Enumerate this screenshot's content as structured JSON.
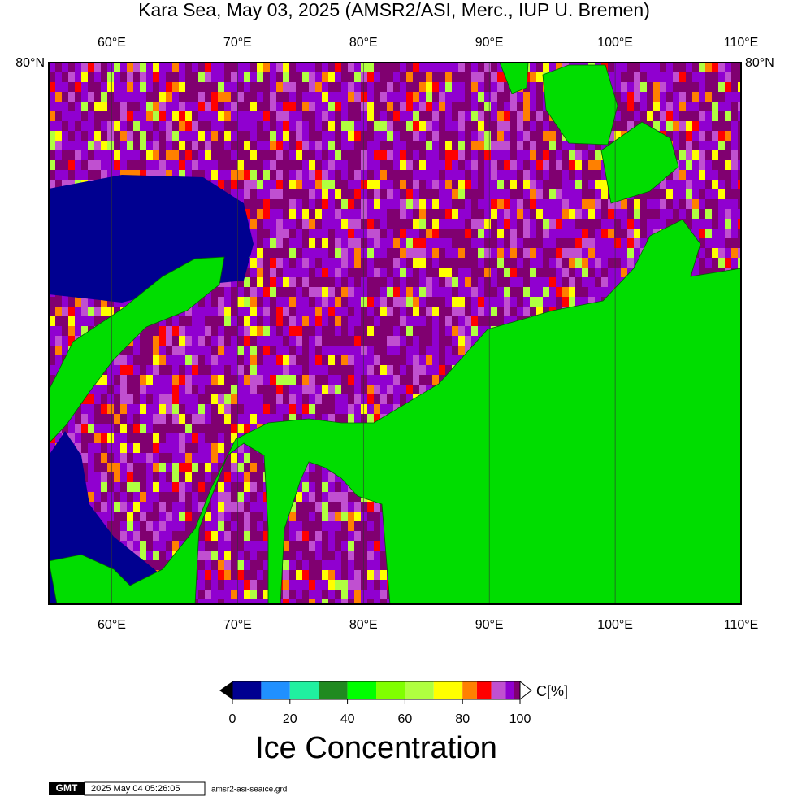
{
  "title": "Kara Sea, May 03, 2025 (AMSR2/ASI, Merc., IUP U. Bremen)",
  "map": {
    "lonlim": [
      55,
      110
    ],
    "lon_ticks": [
      {
        "value": 60,
        "label": "60°E"
      },
      {
        "value": 70,
        "label": "70°E"
      },
      {
        "value": 80,
        "label": "80°E"
      },
      {
        "value": 90,
        "label": "90°E"
      },
      {
        "value": 100,
        "label": "100°E"
      },
      {
        "value": 110,
        "label": "110°E"
      }
    ],
    "lat_label": "80°N"
  },
  "colorbar": {
    "bins": [
      0,
      10,
      20,
      30,
      40,
      50,
      60,
      70,
      80,
      85,
      90,
      95,
      98,
      100
    ],
    "colors": [
      "#000090",
      "#2090ff",
      "#20f0a0",
      "#208a20",
      "#00ff00",
      "#80ff00",
      "#b0ff40",
      "#ffff00",
      "#ff8000",
      "#ff0000",
      "#c050d0",
      "#9000d0",
      "#800070"
    ],
    "ticks": [
      0,
      20,
      40,
      60,
      80,
      100
    ],
    "unit": "C[%]",
    "label": "Ice Concentration"
  },
  "footer": {
    "logo": "GMT",
    "timestamp": "2025 May 04 05:26:05",
    "file": "amsr2-asi-seaice.grd"
  }
}
